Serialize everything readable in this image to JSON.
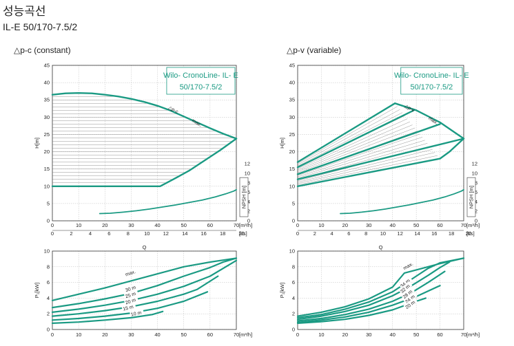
{
  "page": {
    "title": "성능곡선",
    "subtitle": "IL-E 50/170-7.5/2"
  },
  "colors": {
    "curve": "#1a9a83",
    "hatch": "#777777",
    "grid": "#bbbbbb",
    "frame": "#333333"
  },
  "chart_data": [
    {
      "id": "dpc-head",
      "type": "line",
      "title": "△p-c (constant)",
      "model_label": [
        "Wilo- CronoLine- IL- E",
        "50/170-7.5/2"
      ],
      "ylabel": "H[m]",
      "xlabel_primary": "[m³/h]",
      "xlabel_secondary": "[l/s]",
      "y2label": "NPSH [m]",
      "xlim": [
        0,
        70
      ],
      "ylim": [
        0,
        45
      ],
      "y2lim": [
        0,
        12
      ],
      "xticks": [
        0,
        10,
        20,
        30,
        40,
        50,
        60,
        70
      ],
      "xticks_secondary": [
        0,
        2,
        4,
        6,
        8,
        10,
        12,
        14,
        16,
        18,
        20
      ],
      "yticks": [
        0,
        5,
        10,
        15,
        20,
        25,
        30,
        35,
        40,
        45
      ],
      "y2ticks": [
        0,
        2,
        4,
        6,
        8,
        10,
        12
      ],
      "series_labels": [
        "△p-c",
        "max."
      ],
      "series": [
        {
          "x": [
            0,
            5,
            10,
            15,
            20,
            25,
            30,
            35,
            40,
            45,
            50,
            55,
            60,
            65,
            70
          ],
          "y": [
            36.5,
            36.9,
            37.0,
            36.9,
            36.5,
            36.0,
            35.3,
            34.4,
            33.3,
            31.9,
            30.2,
            28.5,
            26.8,
            25.2,
            23.8
          ]
        },
        {
          "x": [
            0,
            41,
            46,
            52,
            58,
            64,
            70
          ],
          "y": [
            10,
            10,
            12,
            14.5,
            17.5,
            20.5,
            23.8
          ]
        },
        {
          "x": [
            0,
            5,
            10,
            15,
            20,
            25,
            30,
            35,
            41
          ],
          "y": [
            22.5,
            22.5,
            22.5,
            22.5,
            22.5,
            22.5,
            22.5,
            22.5,
            22.5
          ]
        },
        {
          "x": [
            18,
            22,
            27,
            32,
            37,
            42,
            47,
            52,
            57,
            62,
            66,
            69,
            70
          ],
          "y": [
            2.1,
            2.2,
            2.5,
            2.9,
            3.4,
            4.0,
            4.6,
            5.3,
            6.0,
            6.9,
            7.8,
            8.6,
            9.0
          ]
        }
      ]
    },
    {
      "id": "dpc-power",
      "type": "line",
      "ylabel": "P₁[kW]",
      "xlabel": "Q",
      "xlabel_primary": "[m³/h]",
      "xlim": [
        0,
        70
      ],
      "ylim": [
        0,
        10
      ],
      "xticks": [
        0,
        10,
        20,
        30,
        40,
        50,
        60,
        70
      ],
      "yticks": [
        0,
        2,
        4,
        6,
        8,
        10
      ],
      "series_labels": [
        "max.",
        "30 m",
        "25 m",
        "20 m",
        "15 m",
        "10 m"
      ],
      "series": [
        {
          "name": "max.",
          "x": [
            0,
            10,
            20,
            30,
            40,
            50,
            60,
            70
          ],
          "y": [
            3.7,
            4.5,
            5.3,
            6.2,
            7.1,
            8.0,
            8.6,
            9.1
          ]
        },
        {
          "name": "30 m",
          "x": [
            0,
            10,
            20,
            30,
            40,
            50,
            60,
            65,
            70
          ],
          "y": [
            2.8,
            3.3,
            3.9,
            4.6,
            5.6,
            6.8,
            7.9,
            8.6,
            9.1
          ]
        },
        {
          "name": "25 m",
          "x": [
            0,
            10,
            20,
            30,
            40,
            50,
            60,
            70
          ],
          "y": [
            2.2,
            2.6,
            3.1,
            3.7,
            4.5,
            5.5,
            6.8,
            8.8
          ]
        },
        {
          "name": "20 m",
          "x": [
            0,
            10,
            20,
            30,
            40,
            50,
            55,
            63
          ],
          "y": [
            1.7,
            2.0,
            2.4,
            2.9,
            3.6,
            4.5,
            5.1,
            6.8
          ]
        },
        {
          "name": "15 m",
          "x": [
            0,
            10,
            20,
            30,
            40,
            50,
            59
          ],
          "y": [
            1.2,
            1.4,
            1.7,
            2.1,
            2.7,
            3.6,
            4.8
          ]
        },
        {
          "name": "10 m",
          "x": [
            0,
            10,
            20,
            30,
            38,
            42
          ],
          "y": [
            0.8,
            0.95,
            1.2,
            1.5,
            1.9,
            2.3
          ]
        }
      ]
    },
    {
      "id": "dpv-head",
      "type": "line",
      "title": "△p-v (variable)",
      "model_label": [
        "Wilo- CronoLine- IL- E",
        "50/170-7.5/2"
      ],
      "ylabel": "H[m]",
      "xlabel_primary": "[m³/h]",
      "xlabel_secondary": "[l/s]",
      "y2label": "NPSH [m]",
      "xlim": [
        0,
        70
      ],
      "ylim": [
        0,
        45
      ],
      "y2lim": [
        0,
        12
      ],
      "xticks": [
        0,
        10,
        20,
        30,
        40,
        50,
        60,
        70
      ],
      "xticks_secondary": [
        0,
        2,
        4,
        6,
        8,
        10,
        12,
        14,
        16,
        18,
        20
      ],
      "yticks": [
        0,
        5,
        10,
        15,
        20,
        25,
        30,
        35,
        40,
        45
      ],
      "y2ticks": [
        0,
        2,
        4,
        6,
        8,
        10,
        12
      ],
      "series_labels": [
        "△p-v",
        "max."
      ],
      "series": [
        {
          "x": [
            0,
            41
          ],
          "y": [
            17,
            34
          ]
        },
        {
          "x": [
            0,
            49
          ],
          "y": [
            15.5,
            32
          ]
        },
        {
          "x": [
            0,
            60
          ],
          "y": [
            13.5,
            28
          ]
        },
        {
          "x": [
            0,
            70
          ],
          "y": [
            12,
            23.8
          ]
        },
        {
          "x": [
            0,
            60
          ],
          "y": [
            10,
            18
          ]
        },
        {
          "x": [
            41,
            50,
            60,
            70
          ],
          "y": [
            34,
            32,
            28.5,
            23.8
          ]
        },
        {
          "x": [
            70,
            64,
            60
          ],
          "y": [
            23.8,
            20,
            18
          ]
        },
        {
          "x": [
            18,
            22,
            27,
            32,
            37,
            42,
            47,
            52,
            57,
            62,
            66,
            69,
            70
          ],
          "y": [
            2.1,
            2.2,
            2.5,
            2.9,
            3.4,
            4.0,
            4.6,
            5.3,
            6.0,
            6.9,
            7.8,
            8.6,
            9.0
          ]
        }
      ]
    },
    {
      "id": "dpv-power",
      "type": "line",
      "ylabel": "P₁[kW]",
      "xlabel": "Q",
      "xlabel_primary": "[m³/h]",
      "xlim": [
        0,
        70
      ],
      "ylim": [
        0,
        10
      ],
      "xticks": [
        0,
        10,
        20,
        30,
        40,
        50,
        60,
        70
      ],
      "yticks": [
        0,
        2,
        4,
        6,
        8,
        10
      ],
      "series_labels": [
        "max.",
        "34 m",
        "32 m",
        "28 m",
        "24 m",
        "20 m"
      ],
      "series": [
        {
          "name": "max.",
          "x": [
            0,
            10,
            20,
            30,
            40,
            45,
            50,
            60,
            70
          ],
          "y": [
            1.7,
            2.2,
            2.9,
            3.9,
            5.4,
            7.2,
            7.6,
            8.4,
            9.1
          ]
        },
        {
          "name": "34 m",
          "x": [
            0,
            10,
            20,
            30,
            40,
            45,
            50,
            55,
            60,
            70
          ],
          "y": [
            1.5,
            1.9,
            2.6,
            3.5,
            4.8,
            5.8,
            6.8,
            7.8,
            8.5,
            9.1
          ]
        },
        {
          "name": "32 m",
          "x": [
            0,
            10,
            20,
            30,
            40,
            47,
            55,
            60,
            64
          ],
          "y": [
            1.3,
            1.7,
            2.3,
            3.1,
            4.3,
            5.4,
            6.9,
            7.9,
            8.6
          ]
        },
        {
          "name": "28 m",
          "x": [
            0,
            10,
            20,
            30,
            40,
            48,
            55,
            62
          ],
          "y": [
            1.1,
            1.4,
            1.9,
            2.6,
            3.6,
            4.7,
            6.0,
            7.4
          ]
        },
        {
          "name": "24 m",
          "x": [
            0,
            10,
            20,
            30,
            40,
            50,
            60
          ],
          "y": [
            0.9,
            1.2,
            1.6,
            2.2,
            3.1,
            4.2,
            5.6
          ]
        },
        {
          "name": "20 m",
          "x": [
            0,
            10,
            20,
            30,
            40,
            50,
            54
          ],
          "y": [
            0.8,
            1.0,
            1.3,
            1.8,
            2.5,
            3.6,
            4.0
          ]
        }
      ]
    }
  ]
}
